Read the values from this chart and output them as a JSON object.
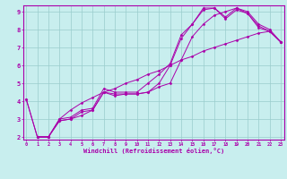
{
  "xlabel": "Windchill (Refroidissement éolien,°C)",
  "bg_color": "#c8eeee",
  "line_color": "#aa00aa",
  "grid_color": "#99cccc",
  "xmin": 0,
  "xmax": 23,
  "ymin": 2,
  "ymax": 9,
  "line1_x": [
    0,
    1,
    2,
    3,
    4,
    5,
    6,
    7,
    8,
    9,
    10,
    11,
    12,
    13,
    14,
    15,
    16,
    17,
    18,
    19,
    20,
    21,
    22,
    23
  ],
  "line1_y": [
    4.1,
    2.0,
    2.0,
    3.0,
    3.1,
    3.5,
    3.6,
    4.7,
    4.5,
    4.5,
    4.5,
    5.0,
    5.5,
    6.1,
    7.7,
    8.3,
    9.2,
    9.2,
    8.7,
    9.2,
    9.0,
    8.3,
    8.0,
    7.3
  ],
  "line2_x": [
    1,
    2,
    3,
    4,
    5,
    6,
    7,
    8,
    9,
    10,
    11,
    12,
    13,
    14,
    15,
    16,
    17,
    18,
    19,
    20,
    21,
    22,
    23
  ],
  "line2_y": [
    2.0,
    2.0,
    2.9,
    3.0,
    3.4,
    3.5,
    4.5,
    4.4,
    4.4,
    4.4,
    4.5,
    5.0,
    6.0,
    7.5,
    8.3,
    9.1,
    9.2,
    8.6,
    9.1,
    8.9,
    8.2,
    7.9,
    7.3
  ],
  "line3_x": [
    0,
    1,
    2,
    3,
    4,
    5,
    6,
    7,
    8,
    9,
    10,
    11,
    12,
    13,
    14,
    15,
    16,
    17,
    18,
    19,
    20,
    21,
    22,
    23
  ],
  "line3_y": [
    4.1,
    2.0,
    2.0,
    2.9,
    3.0,
    3.2,
    3.5,
    4.5,
    4.3,
    4.4,
    4.4,
    4.5,
    4.8,
    5.0,
    6.3,
    7.6,
    8.3,
    8.8,
    9.0,
    9.2,
    8.9,
    8.1,
    7.9,
    7.3
  ],
  "line4_x": [
    1,
    2,
    3,
    4,
    5,
    6,
    7,
    8,
    9,
    10,
    11,
    12,
    13,
    14,
    15,
    16,
    17,
    18,
    19,
    20,
    21,
    22,
    23
  ],
  "line4_y": [
    2.0,
    2.0,
    3.0,
    3.5,
    3.9,
    4.2,
    4.5,
    4.7,
    5.0,
    5.2,
    5.5,
    5.7,
    6.0,
    6.3,
    6.5,
    6.8,
    7.0,
    7.2,
    7.4,
    7.6,
    7.8,
    7.9,
    7.3
  ]
}
